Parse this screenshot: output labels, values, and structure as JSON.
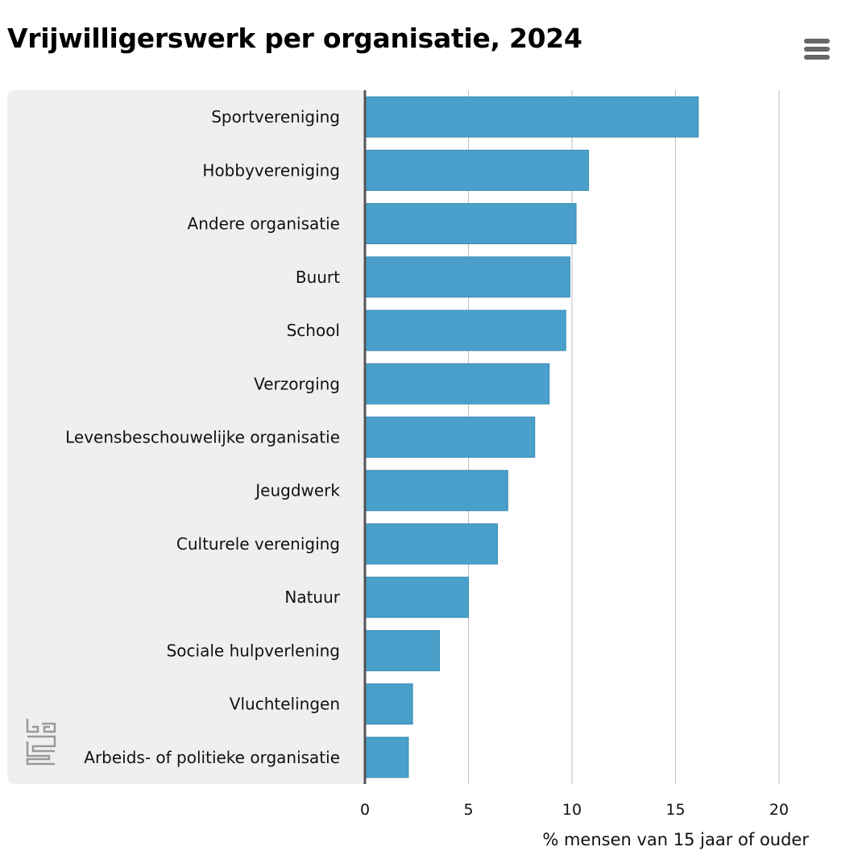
{
  "header": {
    "title": "Vrijwilligerswerk per organisatie, 2024"
  },
  "icons": {
    "menu": "hamburger-menu-icon",
    "logo": "cbs-logo-icon"
  },
  "colors": {
    "bar": "#4aa0cb",
    "panel": "#efefef",
    "axis": "#555555",
    "grid": "#bdbdbd"
  },
  "chart_data": {
    "type": "bar",
    "orientation": "horizontal",
    "title": "Vrijwilligerswerk per organisatie, 2024",
    "xlabel": "% mensen van 15 jaar of ouder",
    "ylabel": "",
    "categories": [
      "Sportvereniging",
      "Hobbyvereniging",
      "Andere organisatie",
      "Buurt",
      "School",
      "Verzorging",
      "Levensbeschouwelijke organisatie",
      "Jeugdwerk",
      "Culturele vereniging",
      "Natuur",
      "Sociale hulpverlening",
      "Vluchtelingen",
      "Arbeids- of politieke organisatie"
    ],
    "values": [
      16.1,
      10.8,
      10.2,
      9.9,
      9.7,
      8.9,
      8.2,
      6.9,
      6.4,
      5.0,
      3.6,
      2.3,
      2.1
    ],
    "xlim": [
      0,
      20
    ],
    "xticks": [
      0,
      5,
      10,
      15,
      20
    ],
    "grid": true,
    "legend": "none"
  }
}
